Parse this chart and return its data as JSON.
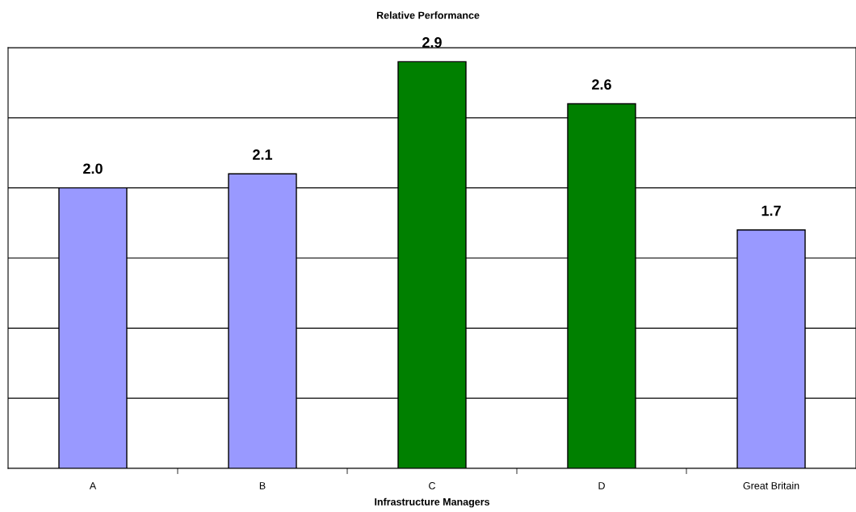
{
  "chart_data": {
    "type": "bar",
    "title": "Relative Performance",
    "xlabel": "Infrastructure Managers",
    "categories": [
      "A",
      "B",
      "C",
      "D",
      "Great Britain"
    ],
    "values": [
      2.0,
      2.1,
      2.9,
      2.6,
      1.7
    ],
    "value_labels": [
      "2.0",
      "2.1",
      "2.9",
      "2.6",
      "1.7"
    ],
    "colors": [
      "#9999ff",
      "#9999ff",
      "#008000",
      "#008000",
      "#9999ff"
    ],
    "ylim": [
      0,
      3
    ],
    "yticks": [
      {
        "value": 0,
        "label": null
      },
      {
        "value": 0.5,
        "label": null
      },
      {
        "value": 1,
        "label": null
      },
      {
        "value": 1.5,
        "label": null
      },
      {
        "value": 2,
        "label": null
      },
      {
        "value": 2.5,
        "label": null
      },
      {
        "value": 3,
        "label": null
      }
    ],
    "grid": "y",
    "tick_labels": "x"
  }
}
